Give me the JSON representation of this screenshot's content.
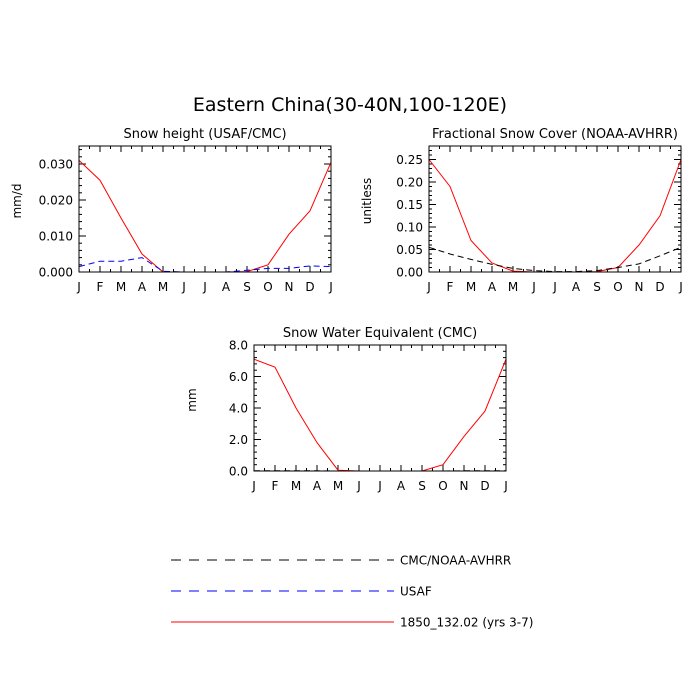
{
  "figure": {
    "title": "Eastern China(30-40N,100-120E)"
  },
  "legend": {
    "items": [
      {
        "label": "CMC/NOAA-AVHRR",
        "color": "#000000",
        "style": "dashed"
      },
      {
        "label": "USAF",
        "color": "#0000ff",
        "style": "dashed"
      },
      {
        "label": "1850_132.02 (yrs 3-7)",
        "color": "#ff0000",
        "style": "solid"
      }
    ]
  },
  "chart_data": [
    {
      "type": "line",
      "title": "Snow height (USAF/CMC)",
      "xlabel": "",
      "ylabel": "mm/d",
      "categories": [
        "J",
        "F",
        "M",
        "A",
        "M",
        "J",
        "J",
        "A",
        "S",
        "O",
        "N",
        "D",
        "J"
      ],
      "ylim": [
        0,
        0.035
      ],
      "yticks": [
        0.0,
        0.01,
        0.02,
        0.03
      ],
      "yticklabels": [
        "0.000",
        "0.010",
        "0.020",
        "0.030"
      ],
      "grid": false,
      "series": [
        {
          "name": "1850_132.02 (yrs 3-7)",
          "color": "#ff0000",
          "style": "solid",
          "values": [
            0.031,
            0.0255,
            0.015,
            0.005,
            0.0,
            0.0,
            0.0,
            0.0,
            0.0001,
            0.002,
            0.0105,
            0.017,
            0.0305
          ]
        },
        {
          "name": "USAF",
          "color": "#0000ff",
          "style": "dashed",
          "values": [
            0.0015,
            0.003,
            0.003,
            0.004,
            0.0002,
            0.0,
            0.0,
            0.0,
            0.0005,
            0.001,
            0.001,
            0.0017,
            0.0015
          ]
        }
      ]
    },
    {
      "type": "line",
      "title": "Fractional Snow Cover (NOAA-AVHRR)",
      "xlabel": "",
      "ylabel": "unitless",
      "categories": [
        "J",
        "F",
        "M",
        "A",
        "M",
        "J",
        "J",
        "A",
        "S",
        "O",
        "N",
        "D",
        "J"
      ],
      "ylim": [
        0,
        0.28
      ],
      "yticks": [
        0.0,
        0.05,
        0.1,
        0.15,
        0.2,
        0.25
      ],
      "yticklabels": [
        "0.00",
        "0.05",
        "0.10",
        "0.15",
        "0.20",
        "0.25"
      ],
      "grid": false,
      "series": [
        {
          "name": "1850_132.02 (yrs 3-7)",
          "color": "#ff0000",
          "style": "solid",
          "values": [
            0.25,
            0.19,
            0.07,
            0.02,
            0.002,
            0.0,
            0.0,
            0.0,
            0.001,
            0.01,
            0.06,
            0.125,
            0.25
          ]
        },
        {
          "name": "CMC/NOAA-AVHRR",
          "color": "#000000",
          "style": "dashed",
          "values": [
            0.055,
            0.04,
            0.028,
            0.017,
            0.008,
            0.003,
            0.001,
            0.001,
            0.003,
            0.01,
            0.018,
            0.036,
            0.055
          ]
        }
      ]
    },
    {
      "type": "line",
      "title": "Snow Water Equivalent (CMC)",
      "xlabel": "",
      "ylabel": "mm",
      "categories": [
        "J",
        "F",
        "M",
        "A",
        "M",
        "J",
        "J",
        "A",
        "S",
        "O",
        "N",
        "D",
        "J"
      ],
      "ylim": [
        0,
        8.0
      ],
      "yticks": [
        0.0,
        2.0,
        4.0,
        6.0,
        8.0
      ],
      "yticklabels": [
        "0.0",
        "2.0",
        "4.0",
        "6.0",
        "8.0"
      ],
      "grid": false,
      "series": [
        {
          "name": "1850_132.02 (yrs 3-7)",
          "color": "#ff0000",
          "style": "solid",
          "values": [
            7.1,
            6.6,
            4.0,
            1.8,
            0.05,
            0.0,
            0.0,
            0.0,
            0.0,
            0.4,
            2.2,
            3.8,
            7.1
          ]
        },
        {
          "name": "CMC/NOAA-AVHRR",
          "color": "#000000",
          "style": "dashed",
          "values": [
            0.02,
            0.02,
            0.02,
            0.01,
            0.0,
            0.0,
            0.0,
            0.0,
            0.0,
            0.0,
            0.01,
            0.02,
            0.02
          ]
        }
      ]
    }
  ]
}
